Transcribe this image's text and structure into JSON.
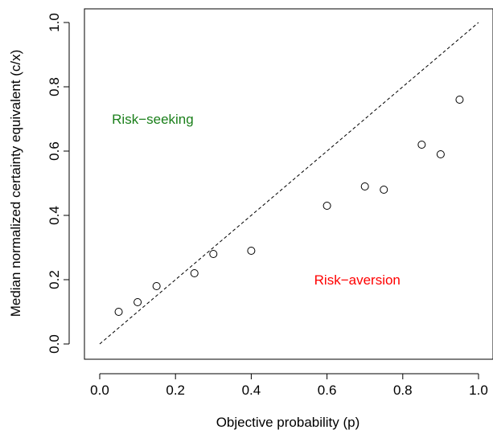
{
  "chart_data": {
    "type": "scatter",
    "title": "",
    "xlabel": "Objective probability (p)",
    "ylabel": "Median normalized certainty equivalent (c/x)",
    "xlim": [
      0.0,
      1.0
    ],
    "ylim": [
      0.0,
      1.0
    ],
    "x_ticks": [
      "0.0",
      "0.2",
      "0.4",
      "0.6",
      "0.8",
      "1.0"
    ],
    "y_ticks": [
      "0.0",
      "0.2",
      "0.4",
      "0.6",
      "0.8",
      "1.0"
    ],
    "grid": false,
    "marker": "open-circle",
    "points": [
      {
        "x": 0.05,
        "y": 0.1
      },
      {
        "x": 0.1,
        "y": 0.13
      },
      {
        "x": 0.15,
        "y": 0.18
      },
      {
        "x": 0.25,
        "y": 0.22
      },
      {
        "x": 0.3,
        "y": 0.28
      },
      {
        "x": 0.4,
        "y": 0.29
      },
      {
        "x": 0.6,
        "y": 0.43
      },
      {
        "x": 0.7,
        "y": 0.49
      },
      {
        "x": 0.75,
        "y": 0.48
      },
      {
        "x": 0.85,
        "y": 0.62
      },
      {
        "x": 0.9,
        "y": 0.59
      },
      {
        "x": 0.95,
        "y": 0.76
      }
    ],
    "reference_line": {
      "style": "dashed",
      "from": [
        0.0,
        0.0
      ],
      "to": [
        1.0,
        1.0
      ]
    },
    "annotations": [
      {
        "text": "Risk−seeking",
        "x": 0.14,
        "y": 0.7,
        "color": "#1a7f1a"
      },
      {
        "text": "Risk−aversion",
        "x": 0.68,
        "y": 0.2,
        "color": "#ff0000"
      }
    ]
  }
}
